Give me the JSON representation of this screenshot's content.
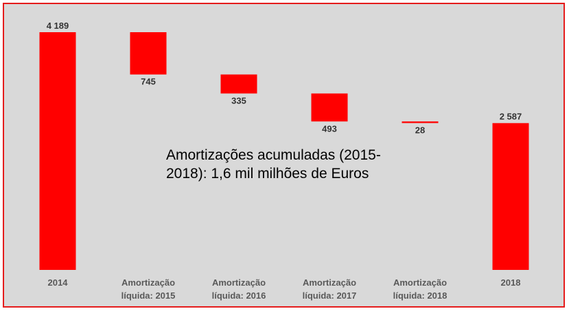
{
  "chart_data": {
    "type": "bar",
    "subtype": "waterfall",
    "categories": [
      [
        "2014"
      ],
      [
        "Amortização",
        "líquida: 2015"
      ],
      [
        "Amortização",
        "líquida: 2016"
      ],
      [
        "Amortização",
        "líquida: 2017"
      ],
      [
        "Amortização",
        "líquida: 2018"
      ],
      [
        "2018"
      ]
    ],
    "values": [
      4189,
      -745,
      -335,
      -493,
      -28,
      2587
    ],
    "value_labels": [
      "4 189",
      "745",
      "335",
      "493",
      "28",
      "2 587"
    ],
    "ylim": [
      0,
      4500
    ],
    "grid": false,
    "legend": "none",
    "annotation": {
      "lines": [
        "Amortizações acumuladas (2015-",
        "2018): 1,6 mil milhões de Euros"
      ]
    },
    "colors": {
      "bar": "#ff0000",
      "background": "#d9d9d9",
      "border": "#e51b1b"
    }
  }
}
